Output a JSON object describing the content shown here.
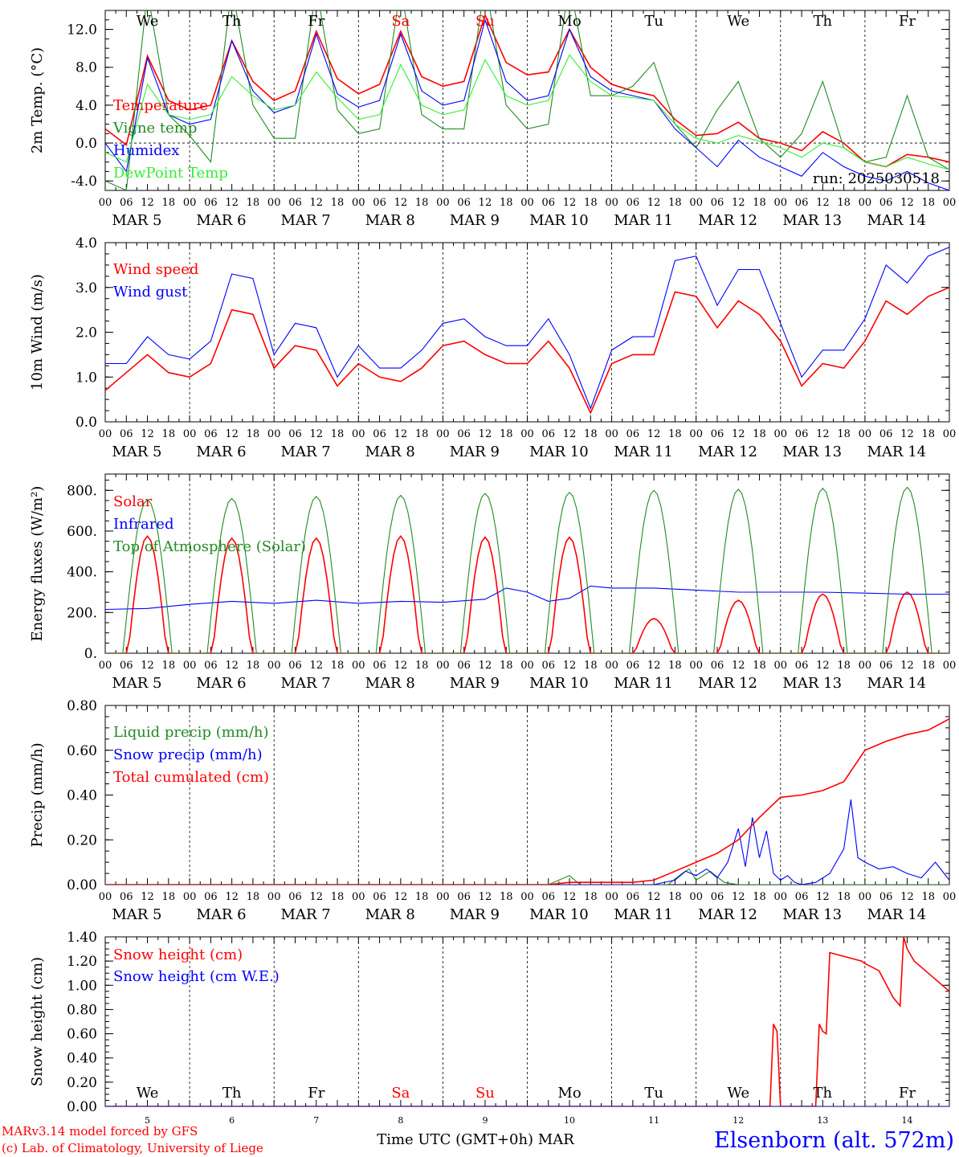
{
  "day_labels": [
    "We",
    "Th",
    "Fr",
    "Sa",
    "Su",
    "Mo",
    "Tu",
    "We",
    "Th",
    "Fr"
  ],
  "weekend_flags": [
    false,
    false,
    false,
    true,
    true,
    false,
    false,
    false,
    false,
    false
  ],
  "date_labels": [
    "MAR  5",
    "MAR  6",
    "MAR  7",
    "MAR  8",
    "MAR  9",
    "MAR 10",
    "MAR 11",
    "MAR 12",
    "MAR 13",
    "MAR 14"
  ],
  "hour_ticks": [
    "00",
    "06",
    "12",
    "18"
  ],
  "final_hour": "00",
  "bottom_day_numbers": [
    "5",
    "6",
    "7",
    "8",
    "9",
    "10",
    "11",
    "12",
    "13",
    "14"
  ],
  "run_label": "run: 2025030518",
  "footer": {
    "credit1": "MARv3.14 model forced by GFS",
    "credit2": "(c) Lab. of Climatology, University of Liege",
    "xlabel": "Time UTC (GMT+0h) MAR",
    "station": "Elsenborn (alt. 572m)"
  },
  "colors": {
    "red": "#ff0000",
    "dark_green": "#228b22",
    "blue": "#0000ff",
    "light_green": "#33ee33"
  },
  "chart_data": [
    {
      "type": "line",
      "ylabel": "2m Temp. (°C)",
      "ylim": [
        -5,
        14
      ],
      "yticks": [
        "12.0",
        "8.0",
        "4.0",
        "0.0",
        "-4.0"
      ],
      "ytick_values": [
        12,
        8,
        4,
        0,
        -4
      ],
      "x_start": "2025-03-05T00",
      "x_end": "2025-03-15T00",
      "zero_line": true,
      "series": [
        {
          "name": "Temperature",
          "color": "red",
          "x": [
            0,
            6,
            12,
            18,
            24,
            30,
            36,
            42,
            48,
            54,
            60,
            66,
            72,
            78,
            84,
            90,
            96,
            102,
            108,
            114,
            120,
            126,
            132,
            138,
            144,
            150,
            156,
            162,
            168,
            174,
            180,
            186,
            192,
            198,
            204,
            210,
            216,
            222,
            228,
            234,
            240
          ],
          "values": [
            1.5,
            -0.2,
            9.2,
            4.5,
            3.5,
            4.0,
            10.8,
            6.5,
            4.5,
            5.5,
            11.8,
            6.8,
            5.2,
            6.2,
            11.8,
            7.0,
            6.0,
            6.5,
            13.5,
            8.5,
            7.2,
            7.5,
            12.0,
            8.0,
            6.2,
            5.5,
            5.0,
            2.5,
            0.8,
            1.0,
            2.2,
            0.5,
            0.0,
            -0.8,
            1.2,
            0.0,
            -2.0,
            -2.5,
            -1.2,
            -1.5,
            -2.0
          ]
        },
        {
          "name": "Vigne temp",
          "color": "dark_green",
          "x": [
            0,
            6,
            12,
            18,
            24,
            30,
            36,
            42,
            48,
            54,
            60,
            66,
            72,
            78,
            84,
            90,
            96,
            102,
            108,
            114,
            120,
            126,
            132,
            138,
            144,
            150,
            156,
            162,
            168,
            174,
            180,
            186,
            192,
            198,
            204,
            210,
            216,
            222,
            228,
            234,
            240
          ],
          "values": [
            -4.0,
            -5.0,
            16.0,
            3.0,
            0.8,
            -2.0,
            16.5,
            4.0,
            0.5,
            0.5,
            16.5,
            3.5,
            1.0,
            1.5,
            16.5,
            3.0,
            1.5,
            1.5,
            17.0,
            4.0,
            1.5,
            2.0,
            17.0,
            5.0,
            5.0,
            6.0,
            8.5,
            2.0,
            -0.5,
            3.5,
            6.5,
            0.5,
            -1.5,
            1.0,
            6.5,
            -0.5,
            -2.0,
            -1.5,
            5.0,
            -1.5,
            -2.8
          ]
        },
        {
          "name": "Humidex",
          "color": "blue",
          "x": [
            0,
            6,
            12,
            18,
            24,
            30,
            36,
            42,
            48,
            54,
            60,
            66,
            72,
            78,
            84,
            90,
            96,
            102,
            108,
            114,
            120,
            126,
            132,
            138,
            144,
            150,
            156,
            162,
            168,
            174,
            180,
            186,
            192,
            198,
            204,
            210,
            216,
            222,
            228,
            234,
            240
          ],
          "values": [
            0.0,
            -3.0,
            9.0,
            3.0,
            2.0,
            2.5,
            10.8,
            5.5,
            3.2,
            4.0,
            11.5,
            5.2,
            3.8,
            4.5,
            11.5,
            5.5,
            4.0,
            4.5,
            13.0,
            6.5,
            4.5,
            5.0,
            12.0,
            7.0,
            5.5,
            5.0,
            4.5,
            1.5,
            -0.5,
            -2.5,
            0.3,
            -1.5,
            -2.5,
            -3.5,
            -1.0,
            -2.5,
            -3.5,
            -4.0,
            -3.0,
            -4.2,
            -5.0
          ]
        },
        {
          "name": "DewPoint Temp",
          "color": "light_green",
          "x": [
            0,
            6,
            12,
            18,
            24,
            30,
            36,
            42,
            48,
            54,
            60,
            66,
            72,
            78,
            84,
            90,
            96,
            102,
            108,
            114,
            120,
            126,
            132,
            138,
            144,
            150,
            156,
            162,
            168,
            174,
            180,
            186,
            192,
            198,
            204,
            210,
            216,
            222,
            228,
            234,
            240
          ],
          "values": [
            -1.0,
            -2.0,
            6.2,
            3.0,
            2.5,
            3.0,
            7.0,
            5.0,
            3.5,
            4.0,
            7.5,
            4.8,
            2.5,
            3.0,
            8.3,
            4.0,
            3.0,
            3.5,
            8.8,
            5.0,
            4.0,
            4.5,
            9.3,
            6.5,
            5.0,
            4.8,
            4.5,
            2.0,
            0.5,
            0.0,
            0.8,
            0.2,
            -0.5,
            -1.5,
            0.0,
            -0.5,
            -2.0,
            -2.5,
            -1.5,
            -2.2,
            -2.8
          ]
        }
      ]
    },
    {
      "type": "line",
      "ylabel": "10m Wind (m/s)",
      "ylim": [
        0,
        4
      ],
      "yticks": [
        "4.0",
        "3.0",
        "2.0",
        "1.0",
        "0.0"
      ],
      "ytick_values": [
        4,
        3,
        2,
        1,
        0
      ],
      "x_start": "2025-03-05T00",
      "x_end": "2025-03-15T00",
      "series": [
        {
          "name": "Wind speed",
          "color": "red",
          "x": [
            0,
            6,
            12,
            18,
            24,
            30,
            36,
            42,
            48,
            54,
            60,
            66,
            72,
            78,
            84,
            90,
            96,
            102,
            108,
            114,
            120,
            126,
            132,
            138,
            144,
            150,
            156,
            162,
            168,
            174,
            180,
            186,
            192,
            198,
            204,
            210,
            216,
            222,
            228,
            234,
            240
          ],
          "values": [
            0.7,
            1.1,
            1.5,
            1.1,
            1.0,
            1.3,
            2.5,
            2.4,
            1.2,
            1.7,
            1.6,
            0.8,
            1.3,
            1.0,
            0.9,
            1.2,
            1.7,
            1.8,
            1.5,
            1.3,
            1.3,
            1.8,
            1.2,
            0.2,
            1.3,
            1.5,
            1.5,
            2.9,
            2.8,
            2.1,
            2.7,
            2.4,
            1.8,
            0.8,
            1.3,
            1.2,
            1.8,
            2.7,
            2.4,
            2.8,
            3.0
          ]
        },
        {
          "name": "Wind gust",
          "color": "blue",
          "x": [
            0,
            6,
            12,
            18,
            24,
            30,
            36,
            42,
            48,
            54,
            60,
            66,
            72,
            78,
            84,
            90,
            96,
            102,
            108,
            114,
            120,
            126,
            132,
            138,
            144,
            150,
            156,
            162,
            168,
            174,
            180,
            186,
            192,
            198,
            204,
            210,
            216,
            222,
            228,
            234,
            240
          ],
          "values": [
            1.3,
            1.3,
            1.9,
            1.5,
            1.4,
            1.8,
            3.3,
            3.2,
            1.5,
            2.2,
            2.1,
            1.0,
            1.7,
            1.2,
            1.2,
            1.6,
            2.2,
            2.3,
            1.9,
            1.7,
            1.7,
            2.3,
            1.5,
            0.3,
            1.6,
            1.9,
            1.9,
            3.6,
            3.7,
            2.6,
            3.4,
            3.4,
            2.2,
            1.0,
            1.6,
            1.6,
            2.3,
            3.5,
            3.1,
            3.7,
            3.9
          ]
        }
      ]
    },
    {
      "type": "line",
      "ylabel": "Energy fluxes (W/m²)",
      "ylim": [
        0,
        880
      ],
      "yticks": [
        "800.",
        "600.",
        "400.",
        "200.",
        "0."
      ],
      "ytick_values": [
        800,
        600,
        400,
        200,
        0
      ],
      "x_start": "2025-03-05T00",
      "x_end": "2025-03-15T00",
      "series": [
        {
          "name": "Solar",
          "color": "red",
          "daily_peak": [
            575,
            565,
            565,
            575,
            570,
            570,
            170,
            260,
            290,
            300
          ]
        },
        {
          "name": "Infrared",
          "color": "blue",
          "x": [
            0,
            12,
            24,
            36,
            48,
            60,
            72,
            84,
            96,
            108,
            114,
            120,
            126,
            132,
            138,
            144,
            156,
            168,
            180,
            192,
            204,
            216,
            228,
            240
          ],
          "values": [
            215,
            220,
            240,
            255,
            245,
            260,
            245,
            255,
            250,
            265,
            320,
            300,
            255,
            270,
            330,
            320,
            320,
            310,
            300,
            300,
            300,
            295,
            290,
            290
          ]
        },
        {
          "name": "Top of Atmosphere (Solar)",
          "color": "dark_green",
          "daily_peak": [
            755,
            760,
            770,
            775,
            785,
            790,
            800,
            805,
            810,
            815
          ]
        }
      ]
    },
    {
      "type": "line",
      "ylabel": "Precip (mm/h)",
      "ylim": [
        0,
        0.8
      ],
      "yticks": [
        "0.80",
        "0.60",
        "0.40",
        "0.20",
        "0.00"
      ],
      "ytick_values": [
        0.8,
        0.6,
        0.4,
        0.2,
        0.0
      ],
      "x_start": "2025-03-05T00",
      "x_end": "2025-03-15T00",
      "series": [
        {
          "name": "Liquid precip (mm/h)",
          "color": "dark_green",
          "x": [
            0,
            120,
            126,
            129,
            132,
            135,
            160,
            164,
            166,
            168,
            172,
            176,
            180,
            240
          ],
          "values": [
            0,
            0,
            0,
            0.02,
            0.04,
            0,
            0,
            0.05,
            0.07,
            0.02,
            0.06,
            0.01,
            0,
            0
          ]
        },
        {
          "name": "Snow precip (mm/h)",
          "color": "blue",
          "x": [
            0,
            156,
            162,
            165,
            168,
            171,
            174,
            177,
            180,
            182,
            184,
            186,
            188,
            190,
            192,
            194,
            196,
            198,
            202,
            206,
            210,
            212,
            214,
            216,
            220,
            224,
            228,
            232,
            236,
            240
          ],
          "values": [
            0,
            0,
            0.02,
            0.06,
            0.04,
            0.07,
            0.03,
            0.1,
            0.25,
            0.08,
            0.3,
            0.12,
            0.24,
            0.05,
            0.02,
            0.04,
            0.01,
            0,
            0.01,
            0.05,
            0.16,
            0.38,
            0.12,
            0.1,
            0.07,
            0.08,
            0.05,
            0.03,
            0.1,
            0.02
          ]
        },
        {
          "name": "Total cumulated (cm)",
          "color": "red",
          "x": [
            0,
            120,
            126,
            132,
            138,
            144,
            150,
            156,
            162,
            168,
            174,
            180,
            186,
            192,
            198,
            204,
            210,
            216,
            222,
            228,
            234,
            240
          ],
          "values": [
            0,
            0,
            0,
            0.01,
            0.01,
            0.01,
            0.01,
            0.02,
            0.06,
            0.1,
            0.14,
            0.2,
            0.3,
            0.39,
            0.4,
            0.42,
            0.46,
            0.6,
            0.64,
            0.67,
            0.69,
            0.74
          ]
        }
      ]
    },
    {
      "type": "line",
      "ylabel": "Snow height (cm)",
      "ylim": [
        0,
        1.4
      ],
      "yticks": [
        "1.40",
        "1.20",
        "1.00",
        "0.80",
        "0.60",
        "0.40",
        "0.20",
        "0.00"
      ],
      "ytick_values": [
        1.4,
        1.2,
        1.0,
        0.8,
        0.6,
        0.4,
        0.2,
        0.0
      ],
      "x_start": "2025-03-05T00",
      "x_end": "2025-03-15T00",
      "series": [
        {
          "name": "Snow height (cm)",
          "color": "red",
          "x": [
            0,
            189,
            190,
            191,
            192,
            202,
            203,
            204,
            205,
            206,
            215,
            216,
            218,
            220,
            224,
            226,
            227,
            228,
            230,
            234,
            240
          ],
          "values": [
            0,
            0,
            0.68,
            0.62,
            0,
            0,
            0.68,
            0.62,
            0.6,
            1.27,
            1.2,
            1.18,
            1.15,
            1.12,
            0.9,
            0.83,
            1.4,
            1.3,
            1.2,
            1.1,
            0.95
          ]
        },
        {
          "name": "Snow height (cm W.E.)",
          "color": "blue",
          "x": [
            0,
            240
          ],
          "values": [
            0,
            0
          ]
        }
      ]
    }
  ]
}
